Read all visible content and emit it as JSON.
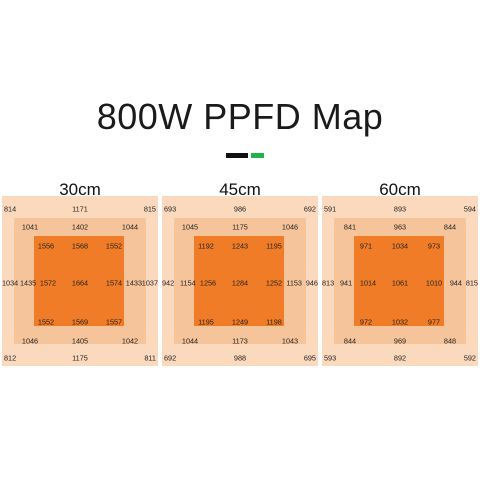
{
  "title": "800W PPFD Map",
  "colors": {
    "outer": "#fbd9bd",
    "middle": "#f6c49b",
    "inner": "#f07c28",
    "accent_black": "#111111",
    "accent_green": "#1fb34a"
  },
  "maps": [
    {
      "label": "30cm",
      "outer": {
        "tl": "814",
        "tc": "1171",
        "tr": "815",
        "ml": "1034",
        "mr": "1037",
        "bl": "812",
        "bc": "1175",
        "br": "811"
      },
      "middle": {
        "tl": "1041",
        "tc": "1402",
        "tr": "1044",
        "ml": "1435",
        "mr": "1433",
        "bl": "1046",
        "bc": "1405",
        "br": "1042"
      },
      "inner": {
        "tl": "1556",
        "tc": "1568",
        "tr": "1552",
        "ml": "1572",
        "c": "1664",
        "mr": "1574",
        "bl": "1552",
        "bc": "1569",
        "br": "1557"
      }
    },
    {
      "label": "45cm",
      "outer": {
        "tl": "693",
        "tc": "986",
        "tr": "692",
        "ml": "942",
        "mr": "946",
        "bl": "692",
        "bc": "988",
        "br": "695"
      },
      "middle": {
        "tl": "1045",
        "tc": "1175",
        "tr": "1046",
        "ml": "1154",
        "mr": "1153",
        "bl": "1044",
        "bc": "1173",
        "br": "1043"
      },
      "inner": {
        "tl": "1192",
        "tc": "1243",
        "tr": "1195",
        "ml": "1256",
        "c": "1284",
        "mr": "1252",
        "bl": "1195",
        "bc": "1249",
        "br": "1198"
      }
    },
    {
      "label": "60cm",
      "outer": {
        "tl": "591",
        "tc": "893",
        "tr": "594",
        "ml": "813",
        "mr": "815",
        "bl": "593",
        "bc": "892",
        "br": "592"
      },
      "middle": {
        "tl": "841",
        "tc": "963",
        "tr": "844",
        "ml": "941",
        "mr": "944",
        "bl": "844",
        "bc": "969",
        "br": "848"
      },
      "inner": {
        "tl": "971",
        "tc": "1034",
        "tr": "973",
        "ml": "1014",
        "c": "1061",
        "mr": "1010",
        "bl": "972",
        "bc": "1032",
        "br": "977"
      }
    }
  ]
}
